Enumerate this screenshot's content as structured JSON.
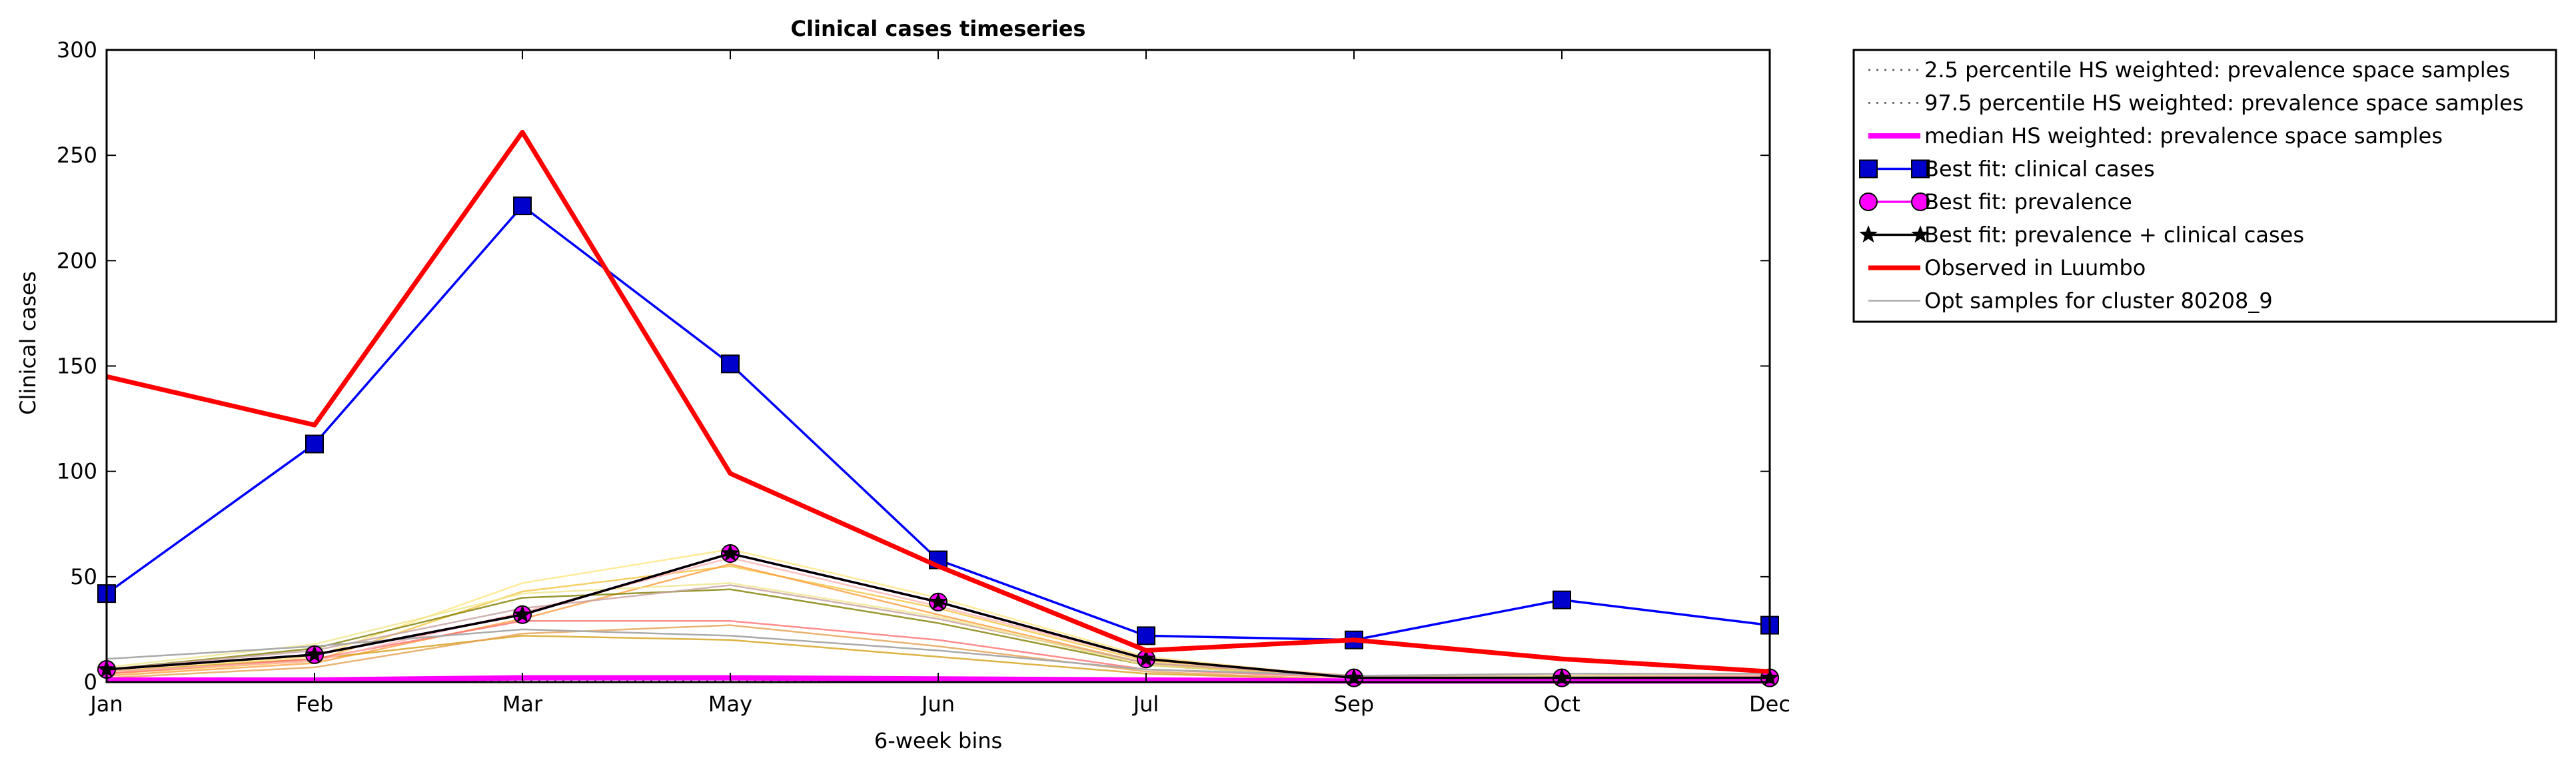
{
  "chart_data": {
    "type": "line",
    "title": "Clinical cases timeseries",
    "xlabel": "6-week bins",
    "ylabel": "Clinical cases",
    "categories": [
      "Jan",
      "Feb",
      "Mar",
      "May",
      "Jun",
      "Jul",
      "Sep",
      "Oct",
      "Dec"
    ],
    "ylim": [
      0,
      300
    ],
    "yticks": [
      0,
      50,
      100,
      150,
      200,
      250,
      300
    ],
    "grid": false,
    "legend_position": "outside-right",
    "series": [
      {
        "name": "2.5 percentile HS weighted: prevalence space samples",
        "style": "dotted",
        "color": "#555555",
        "values": [
          0.5,
          0.5,
          0.5,
          0.5,
          0.5,
          0.5,
          0.3,
          0.3,
          0.3
        ]
      },
      {
        "name": "97.5 percentile HS weighted: prevalence space samples",
        "style": "dotted",
        "color": "#555555",
        "values": [
          1.5,
          1.5,
          2.5,
          2.5,
          2,
          1.5,
          1,
          1,
          1
        ]
      },
      {
        "name": "median HS weighted: prevalence space samples",
        "style": "solid",
        "color": "#ff00ff",
        "values": [
          1,
          1,
          2,
          2,
          1.5,
          1,
          0.5,
          0.5,
          0.5
        ]
      },
      {
        "name": "Best fit: clinical cases",
        "style": "solid",
        "color": "#0000ff",
        "marker": "square",
        "marker_fill": "#0000cc",
        "values": [
          42,
          113,
          226,
          151,
          58,
          22,
          20,
          39,
          27
        ]
      },
      {
        "name": "Best fit: prevalence",
        "style": "solid",
        "color": "#ff00ff",
        "marker": "circle",
        "marker_fill": "#ff00ff",
        "values": [
          6,
          13,
          32,
          61,
          38,
          11,
          2,
          2,
          2
        ]
      },
      {
        "name": "Best fit: prevalence + clinical cases",
        "style": "solid",
        "color": "#000000",
        "marker": "star",
        "values": [
          6,
          13,
          32,
          61,
          38,
          11,
          2,
          2,
          2
        ]
      },
      {
        "name": "Observed in Luumbo",
        "style": "solid",
        "color": "#ff0000",
        "values": [
          145,
          122,
          261,
          99,
          55,
          15,
          20,
          11,
          5
        ]
      },
      {
        "name": "Opt samples for cluster 80208_9",
        "style": "solid",
        "color": "#aaaaaa",
        "values": [
          11,
          17,
          25,
          22,
          15,
          6,
          3,
          4,
          4
        ]
      }
    ],
    "background_samples": [
      {
        "color": "#f5c542",
        "values": [
          4,
          10,
          43,
          55,
          35,
          10,
          3,
          2,
          2
        ]
      },
      {
        "color": "#ffe680",
        "values": [
          5,
          12,
          47,
          63,
          40,
          12,
          2,
          2,
          2
        ]
      },
      {
        "color": "#ff9f40",
        "values": [
          3,
          9,
          30,
          56,
          32,
          9,
          2,
          2,
          3
        ]
      },
      {
        "color": "#d4a017",
        "values": [
          5,
          11,
          22,
          20,
          12,
          4,
          1,
          1,
          2
        ]
      },
      {
        "color": "#e5a050",
        "values": [
          2,
          7,
          23,
          27,
          17,
          5,
          1,
          1,
          2
        ]
      },
      {
        "color": "#808000",
        "values": [
          6,
          16,
          40,
          44,
          28,
          8,
          2,
          2,
          3
        ]
      },
      {
        "color": "#ff7070",
        "values": [
          4,
          11,
          29,
          29,
          20,
          6,
          2,
          2,
          3
        ]
      },
      {
        "color": "#ffb3b3",
        "values": [
          5,
          10,
          33,
          59,
          36,
          11,
          2,
          3,
          3
        ]
      },
      {
        "color": "#c8a0a0",
        "values": [
          6,
          15,
          35,
          46,
          30,
          9,
          3,
          3,
          4
        ]
      },
      {
        "color": "#f0e68c",
        "values": [
          7,
          18,
          42,
          47,
          31,
          8,
          2,
          3,
          4
        ]
      }
    ]
  }
}
